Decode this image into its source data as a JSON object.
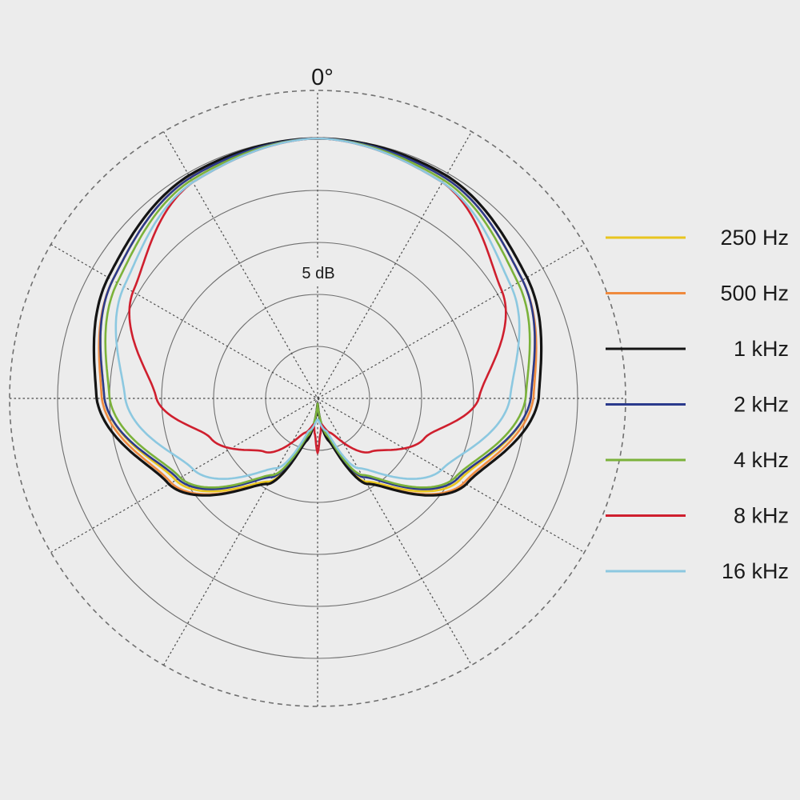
{
  "chart_data": {
    "type": "polar",
    "angle_label": "0°",
    "radial_label": "5 dB",
    "ring_count": 5,
    "spoke_step_deg": 30,
    "legend_position": "right",
    "series": [
      {
        "name": "250 Hz",
        "color": "#e8c51f",
        "angles": [
          0,
          30,
          60,
          90,
          120,
          150,
          165,
          180
        ],
        "values": [
          1.0,
          0.98,
          0.91,
          0.82,
          0.63,
          0.37,
          0.16,
          0.02
        ]
      },
      {
        "name": "500 Hz",
        "color": "#ef8a3e",
        "angles": [
          0,
          30,
          60,
          90,
          120,
          150,
          165,
          180
        ],
        "values": [
          1.0,
          0.98,
          0.91,
          0.83,
          0.65,
          0.38,
          0.17,
          0.02
        ]
      },
      {
        "name": "1 kHz",
        "color": "#141414",
        "angles": [
          0,
          30,
          60,
          90,
          120,
          150,
          165,
          180
        ],
        "values": [
          1.0,
          0.99,
          0.93,
          0.85,
          0.66,
          0.38,
          0.17,
          0.02
        ]
      },
      {
        "name": "2 kHz",
        "color": "#2b3a8c",
        "angles": [
          0,
          30,
          60,
          90,
          120,
          150,
          165,
          180
        ],
        "values": [
          1.0,
          0.98,
          0.91,
          0.82,
          0.62,
          0.35,
          0.15,
          0.02
        ]
      },
      {
        "name": "4 kHz",
        "color": "#7bb23a",
        "angles": [
          0,
          30,
          60,
          90,
          120,
          150,
          165,
          180
        ],
        "values": [
          1.0,
          0.97,
          0.89,
          0.8,
          0.61,
          0.34,
          0.15,
          0.02
        ]
      },
      {
        "name": "8 kHz",
        "color": "#cf1f2e",
        "angles": [
          0,
          30,
          60,
          90,
          110,
          135,
          160,
          172,
          176,
          180
        ],
        "values": [
          1.0,
          0.96,
          0.82,
          0.62,
          0.44,
          0.29,
          0.14,
          0.1,
          0.14,
          0.21
        ]
      },
      {
        "name": "16 kHz",
        "color": "#8cc8e0",
        "angles": [
          0,
          30,
          60,
          90,
          120,
          150,
          165,
          180
        ],
        "values": [
          1.0,
          0.96,
          0.86,
          0.74,
          0.55,
          0.31,
          0.13,
          0.08
        ]
      }
    ]
  }
}
